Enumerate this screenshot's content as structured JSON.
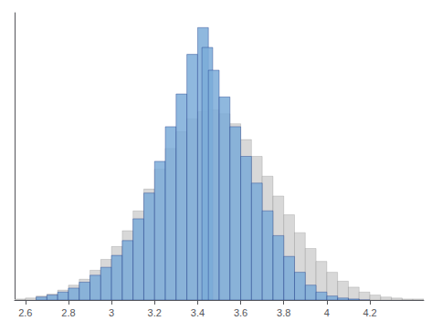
{
  "chart_data": {
    "type": "histogram",
    "bin_width": 0.05,
    "series": [
      {
        "color": "#d8d8d8",
        "x": [
          2.55,
          2.6,
          2.65,
          2.7,
          2.75,
          2.8,
          2.85,
          2.9,
          2.95,
          3.0,
          3.05,
          3.1,
          3.15,
          3.2,
          3.25,
          3.3,
          3.35,
          3.4,
          3.45,
          3.5,
          3.55,
          3.6,
          3.65,
          3.7,
          3.75,
          3.8,
          3.85,
          3.9,
          3.95,
          4.0,
          4.05,
          4.1,
          4.15,
          4.2,
          4.25,
          4.3,
          4.35,
          4.4
        ],
        "values": [
          1,
          2,
          4,
          6,
          10,
          15,
          21,
          30,
          41,
          54,
          70,
          90,
          112,
          132,
          153,
          170,
          183,
          190,
          192,
          188,
          178,
          162,
          145,
          125,
          105,
          86,
          68,
          52,
          39,
          28,
          19,
          13,
          8,
          5,
          3,
          2,
          1,
          1
        ]
      },
      {
        "color": "#7bacd8",
        "x": [
          2.65,
          2.7,
          2.75,
          2.8,
          2.85,
          2.9,
          2.95,
          3.0,
          3.05,
          3.1,
          3.15,
          3.2,
          3.25,
          3.3,
          3.35,
          3.4,
          3.42,
          3.45,
          3.5,
          3.55,
          3.6,
          3.65,
          3.7,
          3.75,
          3.8,
          3.85,
          3.9,
          3.95,
          4.0,
          4.05,
          4.1,
          4.15
        ],
        "values": [
          3,
          5,
          8,
          12,
          18,
          25,
          33,
          45,
          60,
          82,
          108,
          140,
          175,
          208,
          248,
          275,
          255,
          232,
          205,
          175,
          145,
          118,
          90,
          65,
          44,
          28,
          15,
          8,
          4,
          2,
          1,
          0
        ]
      }
    ],
    "xlim": [
      2.55,
      4.45
    ],
    "ylim": [
      0,
      290
    ],
    "xticks": [
      2.6,
      2.8,
      3,
      3.2,
      3.4,
      3.6,
      3.8,
      4,
      4.2
    ],
    "grid": false,
    "tick_labels": "x"
  }
}
